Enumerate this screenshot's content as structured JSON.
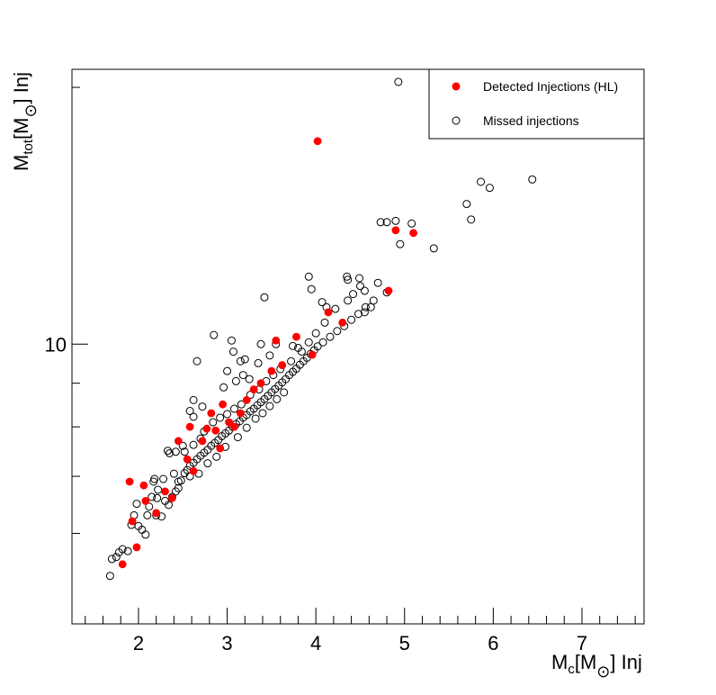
{
  "chart_data": {
    "type": "scatter",
    "title": "",
    "xlabel": {
      "base": "M",
      "sub": "c",
      "bracket_open": "[M",
      "sun": "⊙",
      "bracket_close": "] Inj"
    },
    "ylabel": {
      "base": "M",
      "sub": "tot",
      "bracket_open": "[M",
      "sun": "⊙",
      "bracket_close": "] Inj"
    },
    "xlim": [
      1.25,
      7.7
    ],
    "ylim": [
      4.7,
      21
    ],
    "yscale": "log",
    "x_ticks": [
      2,
      3,
      4,
      5,
      6,
      7
    ],
    "x_tick_labels": [
      "2",
      "3",
      "4",
      "5",
      "6",
      "7"
    ],
    "y_ticks_labeled": [
      10
    ],
    "y_tick_labels": [
      "10"
    ],
    "y_ticks_major": [
      6,
      7,
      8,
      9,
      10,
      20
    ],
    "grid": false,
    "legend": {
      "placement": "top-right",
      "entries": [
        {
          "label": "Detected Injections (HL)",
          "marker": "filled-circle",
          "color": "#ff0000"
        },
        {
          "label": "Missed injections",
          "marker": "open-circle",
          "color": "#000000"
        }
      ]
    },
    "series": [
      {
        "name": "Detected Injections (HL)",
        "color": "#ff0000",
        "marker": "filled-circle",
        "points": [
          [
            1.82,
            5.52
          ],
          [
            1.93,
            6.2
          ],
          [
            1.9,
            6.9
          ],
          [
            1.98,
            5.78
          ],
          [
            2.06,
            6.83
          ],
          [
            2.08,
            6.55
          ],
          [
            2.2,
            6.34
          ],
          [
            2.3,
            6.72
          ],
          [
            2.38,
            6.6
          ],
          [
            2.45,
            7.7
          ],
          [
            2.55,
            7.33
          ],
          [
            2.58,
            8.0
          ],
          [
            2.62,
            7.1
          ],
          [
            2.72,
            7.7
          ],
          [
            2.77,
            7.96
          ],
          [
            2.82,
            8.3
          ],
          [
            2.87,
            7.92
          ],
          [
            2.92,
            7.55
          ],
          [
            2.95,
            8.5
          ],
          [
            3.02,
            8.1
          ],
          [
            3.08,
            8.0
          ],
          [
            3.15,
            8.3
          ],
          [
            3.22,
            8.6
          ],
          [
            3.3,
            8.85
          ],
          [
            3.38,
            9.0
          ],
          [
            3.5,
            9.3
          ],
          [
            3.55,
            10.1
          ],
          [
            3.62,
            9.45
          ],
          [
            3.78,
            10.2
          ],
          [
            3.96,
            9.72
          ],
          [
            4.14,
            10.9
          ],
          [
            4.3,
            10.6
          ],
          [
            4.82,
            11.55
          ],
          [
            4.02,
            17.3
          ],
          [
            4.9,
            13.6
          ],
          [
            5.1,
            13.5
          ]
        ]
      },
      {
        "name": "Missed injections",
        "color": "#000000",
        "marker": "open-circle",
        "points": [
          [
            1.68,
            5.35
          ],
          [
            1.7,
            5.6
          ],
          [
            1.75,
            5.63
          ],
          [
            1.78,
            5.7
          ],
          [
            1.82,
            5.75
          ],
          [
            1.88,
            5.72
          ],
          [
            1.92,
            6.14
          ],
          [
            1.98,
            6.5
          ],
          [
            2.0,
            6.12
          ],
          [
            2.04,
            6.06
          ],
          [
            2.08,
            5.98
          ],
          [
            2.12,
            6.45
          ],
          [
            2.15,
            6.62
          ],
          [
            2.18,
            6.95
          ],
          [
            2.2,
            6.3
          ],
          [
            2.22,
            6.75
          ],
          [
            2.26,
            6.28
          ],
          [
            2.3,
            6.55
          ],
          [
            2.34,
            6.48
          ],
          [
            2.38,
            6.62
          ],
          [
            2.42,
            6.72
          ],
          [
            2.45,
            6.78
          ],
          [
            2.48,
            6.92
          ],
          [
            2.52,
            7.06
          ],
          [
            2.55,
            7.12
          ],
          [
            2.58,
            7.2
          ],
          [
            2.62,
            7.26
          ],
          [
            2.66,
            7.33
          ],
          [
            2.7,
            7.4
          ],
          [
            2.74,
            7.46
          ],
          [
            2.78,
            7.52
          ],
          [
            2.82,
            7.6
          ],
          [
            2.86,
            7.66
          ],
          [
            2.9,
            7.72
          ],
          [
            2.94,
            7.8
          ],
          [
            2.98,
            7.86
          ],
          [
            3.02,
            7.92
          ],
          [
            3.06,
            8.0
          ],
          [
            3.1,
            8.06
          ],
          [
            3.14,
            8.12
          ],
          [
            3.18,
            8.2
          ],
          [
            3.22,
            8.26
          ],
          [
            3.26,
            8.34
          ],
          [
            3.3,
            8.4
          ],
          [
            3.34,
            8.48
          ],
          [
            3.38,
            8.55
          ],
          [
            3.42,
            8.62
          ],
          [
            3.46,
            8.7
          ],
          [
            3.5,
            8.78
          ],
          [
            3.54,
            8.86
          ],
          [
            3.58,
            8.94
          ],
          [
            3.62,
            9.02
          ],
          [
            3.66,
            9.1
          ],
          [
            3.7,
            9.2
          ],
          [
            3.74,
            9.28
          ],
          [
            3.78,
            9.36
          ],
          [
            3.82,
            9.46
          ],
          [
            3.86,
            9.55
          ],
          [
            3.9,
            9.64
          ],
          [
            3.94,
            9.74
          ],
          [
            3.98,
            9.84
          ],
          [
            4.02,
            9.94
          ],
          [
            4.08,
            10.05
          ],
          [
            4.16,
            10.2
          ],
          [
            4.24,
            10.36
          ],
          [
            4.32,
            10.5
          ],
          [
            4.4,
            10.68
          ],
          [
            4.48,
            10.85
          ],
          [
            4.56,
            11.05
          ],
          [
            4.65,
            11.25
          ],
          [
            2.35,
            7.45
          ],
          [
            2.42,
            7.48
          ],
          [
            2.52,
            7.48
          ],
          [
            2.62,
            7.62
          ],
          [
            2.7,
            7.75
          ],
          [
            2.74,
            7.9
          ],
          [
            2.84,
            8.1
          ],
          [
            2.92,
            8.2
          ],
          [
            3.0,
            8.28
          ],
          [
            3.08,
            8.4
          ],
          [
            3.16,
            8.5
          ],
          [
            3.26,
            8.72
          ],
          [
            3.36,
            8.85
          ],
          [
            3.44,
            9.05
          ],
          [
            3.52,
            9.2
          ],
          [
            3.6,
            9.35
          ],
          [
            3.72,
            9.55
          ],
          [
            3.84,
            9.8
          ],
          [
            3.92,
            10.05
          ],
          [
            4.0,
            10.3
          ],
          [
            4.1,
            10.6
          ],
          [
            4.22,
            11.0
          ],
          [
            4.36,
            11.25
          ],
          [
            4.42,
            11.45
          ],
          [
            4.55,
            11.55
          ],
          [
            4.7,
            11.8
          ],
          [
            4.8,
            11.5
          ],
          [
            2.45,
            6.9
          ],
          [
            2.58,
            7.0
          ],
          [
            2.68,
            7.05
          ],
          [
            2.78,
            7.25
          ],
          [
            2.88,
            7.38
          ],
          [
            2.98,
            7.58
          ],
          [
            3.12,
            7.78
          ],
          [
            3.22,
            7.98
          ],
          [
            3.32,
            8.18
          ],
          [
            3.4,
            8.3
          ],
          [
            3.48,
            8.46
          ],
          [
            3.56,
            8.62
          ],
          [
            3.64,
            8.78
          ],
          [
            2.85,
            10.25
          ],
          [
            2.66,
            9.55
          ],
          [
            2.58,
            8.35
          ],
          [
            2.62,
            8.22
          ],
          [
            3.05,
            10.1
          ],
          [
            3.07,
            9.8
          ],
          [
            3.0,
            9.3
          ],
          [
            3.15,
            9.55
          ],
          [
            3.2,
            9.6
          ],
          [
            3.38,
            10.0
          ],
          [
            3.42,
            11.35
          ],
          [
            3.55,
            10.0
          ],
          [
            3.92,
            12.0
          ],
          [
            3.95,
            11.6
          ],
          [
            4.07,
            11.2
          ],
          [
            4.12,
            11.05
          ],
          [
            4.35,
            12.0
          ],
          [
            4.5,
            11.7
          ],
          [
            4.55,
            10.9
          ],
          [
            4.62,
            11.05
          ],
          [
            4.36,
            11.9
          ],
          [
            4.49,
            11.95
          ],
          [
            4.73,
            13.9
          ],
          [
            4.8,
            13.9
          ],
          [
            4.95,
            13.1
          ],
          [
            5.08,
            13.85
          ],
          [
            5.33,
            12.95
          ],
          [
            5.7,
            14.6
          ],
          [
            5.75,
            14.0
          ],
          [
            5.86,
            15.5
          ],
          [
            5.96,
            15.25
          ],
          [
            6.44,
            15.6
          ],
          [
            4.93,
            20.3
          ],
          [
            4.9,
            13.95
          ],
          [
            2.33,
            7.5
          ],
          [
            2.17,
            6.9
          ],
          [
            2.21,
            6.6
          ],
          [
            2.1,
            6.3
          ],
          [
            2.28,
            6.95
          ],
          [
            1.95,
            6.3
          ],
          [
            2.4,
            7.05
          ],
          [
            2.5,
            7.6
          ],
          [
            3.25,
            9.1
          ],
          [
            3.35,
            9.5
          ],
          [
            3.48,
            9.7
          ],
          [
            2.62,
            8.6
          ],
          [
            2.72,
            8.45
          ],
          [
            2.96,
            8.9
          ],
          [
            3.1,
            9.05
          ],
          [
            3.18,
            9.2
          ],
          [
            3.8,
            9.9
          ],
          [
            3.74,
            9.95
          ]
        ]
      }
    ]
  }
}
